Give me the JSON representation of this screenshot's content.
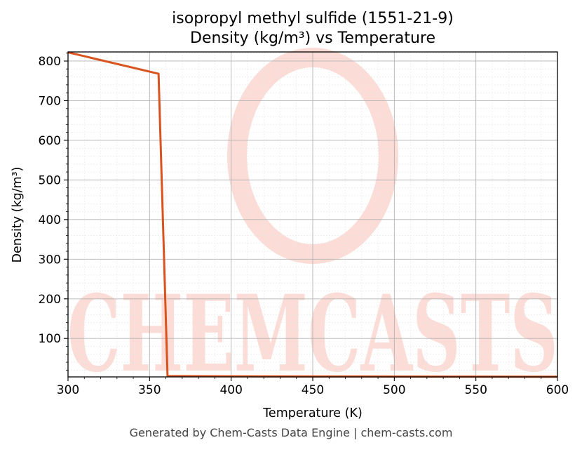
{
  "footer": "Generated by Chem-Casts Data Engine | chem-casts.com",
  "watermark": {
    "text": "CHEMCASTS",
    "color": "#fbd6cf"
  },
  "chart_data": {
    "type": "line",
    "title": [
      "isopropyl methyl sulfide (1551-21-9)",
      "Density (kg/m³) vs Temperature"
    ],
    "xlabel": "Temperature (K)",
    "ylabel": "Density (kg/m³)",
    "xlim": [
      300,
      600
    ],
    "ylim": [
      3,
      823
    ],
    "xticks": [
      300,
      350,
      400,
      450,
      500,
      550,
      600
    ],
    "yticks": [
      100,
      200,
      300,
      400,
      500,
      600,
      700,
      800
    ],
    "grid": true,
    "series": [
      {
        "color": "#d9531e",
        "x": [
          300,
          355.5,
          361,
          370,
          400,
          450,
          500,
          550,
          600
        ],
        "y": [
          822,
          768,
          5,
          4.9,
          4.6,
          4.2,
          3.9,
          3.6,
          3.4
        ]
      }
    ]
  }
}
